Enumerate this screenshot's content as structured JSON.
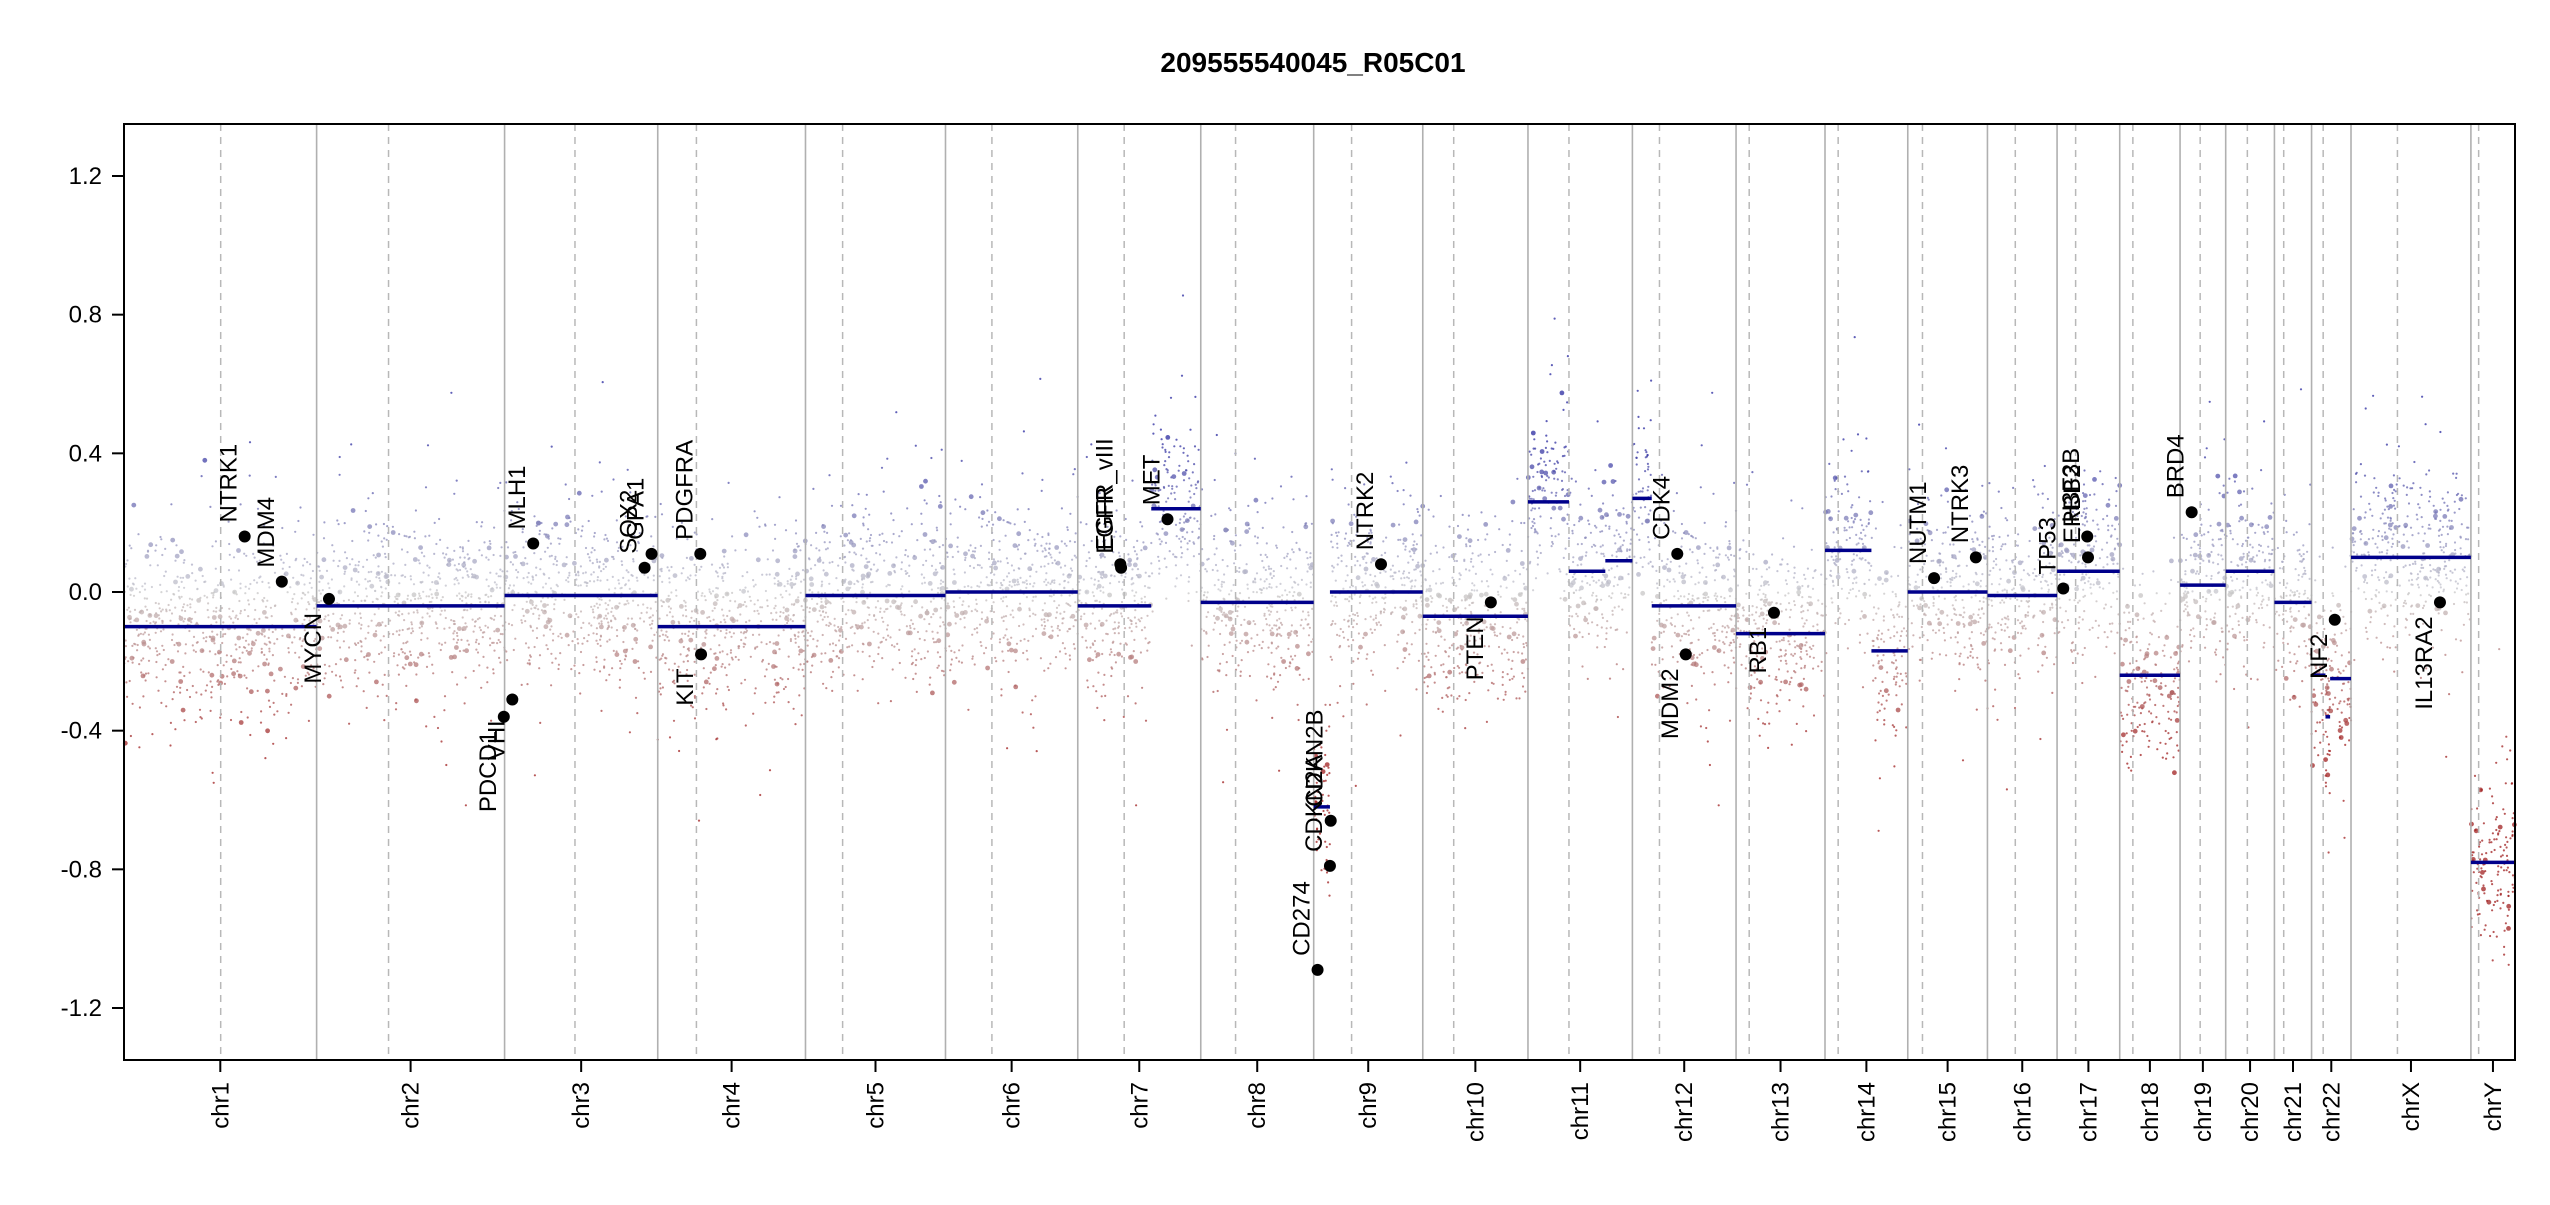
{
  "chart_data": {
    "type": "scatter",
    "title": "209555540045_R05C01",
    "xlabel": "",
    "ylabel": "",
    "ylim": [
      -1.35,
      1.35
    ],
    "yticks": [
      1.2,
      0.8,
      0.4,
      0.0,
      -0.4,
      -0.8,
      -1.2
    ],
    "ytick_labels": [
      "1.2",
      "0.8",
      "0.4",
      "0.0",
      "-0.4",
      "-0.8",
      "-1.2"
    ],
    "grid": false,
    "chromosomes": [
      {
        "name": "chr1",
        "length": 249
      },
      {
        "name": "chr2",
        "length": 243
      },
      {
        "name": "chr3",
        "length": 198
      },
      {
        "name": "chr4",
        "length": 191
      },
      {
        "name": "chr5",
        "length": 181
      },
      {
        "name": "chr6",
        "length": 171
      },
      {
        "name": "chr7",
        "length": 159
      },
      {
        "name": "chr8",
        "length": 146
      },
      {
        "name": "chr9",
        "length": 141
      },
      {
        "name": "chr10",
        "length": 136
      },
      {
        "name": "chr11",
        "length": 135
      },
      {
        "name": "chr12",
        "length": 134
      },
      {
        "name": "chr13",
        "length": 115
      },
      {
        "name": "chr14",
        "length": 107
      },
      {
        "name": "chr15",
        "length": 103
      },
      {
        "name": "chr16",
        "length": 90
      },
      {
        "name": "chr17",
        "length": 81
      },
      {
        "name": "chr18",
        "length": 78
      },
      {
        "name": "chr19",
        "length": 59
      },
      {
        "name": "chr20",
        "length": 63
      },
      {
        "name": "chr21",
        "length": 48
      },
      {
        "name": "chr22",
        "length": 51
      },
      {
        "name": "chrX",
        "length": 155
      },
      {
        "name": "chrY",
        "length": 57
      }
    ],
    "centromeres": [
      {
        "chrom": "chr1",
        "pos": 125
      },
      {
        "chrom": "chr2",
        "pos": 93
      },
      {
        "chrom": "chr3",
        "pos": 91
      },
      {
        "chrom": "chr4",
        "pos": 50
      },
      {
        "chrom": "chr5",
        "pos": 48
      },
      {
        "chrom": "chr6",
        "pos": 60
      },
      {
        "chrom": "chr7",
        "pos": 60
      },
      {
        "chrom": "chr8",
        "pos": 45
      },
      {
        "chrom": "chr9",
        "pos": 49
      },
      {
        "chrom": "chr10",
        "pos": 40
      },
      {
        "chrom": "chr11",
        "pos": 53
      },
      {
        "chrom": "chr12",
        "pos": 35
      },
      {
        "chrom": "chr13",
        "pos": 17
      },
      {
        "chrom": "chr14",
        "pos": 17
      },
      {
        "chrom": "chr15",
        "pos": 19
      },
      {
        "chrom": "chr16",
        "pos": 36
      },
      {
        "chrom": "chr17",
        "pos": 24
      },
      {
        "chrom": "chr18",
        "pos": 17
      },
      {
        "chrom": "chr19",
        "pos": 26
      },
      {
        "chrom": "chr20",
        "pos": 28
      },
      {
        "chrom": "chr21",
        "pos": 12
      },
      {
        "chrom": "chr22",
        "pos": 15
      },
      {
        "chrom": "chrX",
        "pos": 60
      },
      {
        "chrom": "chrY",
        "pos": 10
      }
    ],
    "segments": [
      {
        "chrom": "chr1",
        "start": 0,
        "end": 249,
        "value": -0.1
      },
      {
        "chrom": "chr2",
        "start": 0,
        "end": 243,
        "value": -0.04
      },
      {
        "chrom": "chr3",
        "start": 0,
        "end": 198,
        "value": -0.01
      },
      {
        "chrom": "chr4",
        "start": 0,
        "end": 191,
        "value": -0.1
      },
      {
        "chrom": "chr5",
        "start": 0,
        "end": 181,
        "value": -0.01
      },
      {
        "chrom": "chr6",
        "start": 0,
        "end": 171,
        "value": 0.0
      },
      {
        "chrom": "chr7",
        "start": 0,
        "end": 95,
        "value": -0.04
      },
      {
        "chrom": "chr7",
        "start": 95,
        "end": 159,
        "value": 0.24
      },
      {
        "chrom": "chr8",
        "start": 0,
        "end": 146,
        "value": -0.03
      },
      {
        "chrom": "chr9",
        "start": 0,
        "end": 21,
        "value": -0.62
      },
      {
        "chrom": "chr9",
        "start": 21,
        "end": 141,
        "value": 0.0
      },
      {
        "chrom": "chr10",
        "start": 0,
        "end": 136,
        "value": -0.07
      },
      {
        "chrom": "chr11",
        "start": 0,
        "end": 53,
        "value": 0.26
      },
      {
        "chrom": "chr11",
        "start": 53,
        "end": 100,
        "value": 0.06
      },
      {
        "chrom": "chr11",
        "start": 100,
        "end": 135,
        "value": 0.09
      },
      {
        "chrom": "chr12",
        "start": 0,
        "end": 25,
        "value": 0.27
      },
      {
        "chrom": "chr12",
        "start": 25,
        "end": 134,
        "value": -0.04
      },
      {
        "chrom": "chr13",
        "start": 0,
        "end": 115,
        "value": -0.12
      },
      {
        "chrom": "chr14",
        "start": 0,
        "end": 60,
        "value": 0.12
      },
      {
        "chrom": "chr14",
        "start": 60,
        "end": 107,
        "value": -0.17
      },
      {
        "chrom": "chr15",
        "start": 0,
        "end": 103,
        "value": 0.0
      },
      {
        "chrom": "chr16",
        "start": 0,
        "end": 90,
        "value": -0.01
      },
      {
        "chrom": "chr17",
        "start": 0,
        "end": 81,
        "value": 0.06
      },
      {
        "chrom": "chr18",
        "start": 0,
        "end": 78,
        "value": -0.24
      },
      {
        "chrom": "chr19",
        "start": 0,
        "end": 59,
        "value": 0.02
      },
      {
        "chrom": "chr20",
        "start": 0,
        "end": 63,
        "value": 0.06
      },
      {
        "chrom": "chr21",
        "start": 0,
        "end": 48,
        "value": -0.03
      },
      {
        "chrom": "chr22",
        "start": 0,
        "end": 18,
        "value": -0.24
      },
      {
        "chrom": "chr22",
        "start": 18,
        "end": 24,
        "value": -0.36
      },
      {
        "chrom": "chr22",
        "start": 24,
        "end": 51,
        "value": -0.25
      },
      {
        "chrom": "chrX",
        "start": 0,
        "end": 155,
        "value": 0.1
      },
      {
        "chrom": "chrY",
        "start": 0,
        "end": 57,
        "value": -0.78
      }
    ],
    "genes": [
      {
        "name": "NTRK1",
        "chrom": "chr1",
        "pos": 156,
        "value": 0.16,
        "label_side": "above"
      },
      {
        "name": "MDM4",
        "chrom": "chr1",
        "pos": 204,
        "value": 0.03,
        "label_side": "above"
      },
      {
        "name": "MYCN",
        "chrom": "chr2",
        "pos": 16,
        "value": -0.02,
        "label_side": "below"
      },
      {
        "name": "PDCD1",
        "chrom": "chr2",
        "pos": 242,
        "value": -0.36,
        "label_side": "below"
      },
      {
        "name": "VHL",
        "chrom": "chr3",
        "pos": 10,
        "value": -0.31,
        "label_side": "below"
      },
      {
        "name": "MLH1",
        "chrom": "chr3",
        "pos": 37,
        "value": 0.14,
        "label_side": "above"
      },
      {
        "name": "SOX2",
        "chrom": "chr3",
        "pos": 181,
        "value": 0.07,
        "label_side": "above"
      },
      {
        "name": "GPA1",
        "chrom": "chr3",
        "pos": 190,
        "value": 0.11,
        "label_side": "above"
      },
      {
        "name": "PDGFRA",
        "chrom": "chr4",
        "pos": 55,
        "value": 0.11,
        "label_side": "above"
      },
      {
        "name": "KIT",
        "chrom": "chr4",
        "pos": 56,
        "value": -0.18,
        "label_side": "below"
      },
      {
        "name": "EGFR_vIII",
        "chrom": "chr7",
        "pos": 55,
        "value": 0.08,
        "label_side": "above"
      },
      {
        "name": "EGFR",
        "chrom": "chr7",
        "pos": 56,
        "value": 0.07,
        "label_side": "above"
      },
      {
        "name": "MET",
        "chrom": "chr7",
        "pos": 116,
        "value": 0.21,
        "label_side": "above"
      },
      {
        "name": "CD274",
        "chrom": "chr9",
        "pos": 5,
        "value": -1.09,
        "label_side": "above"
      },
      {
        "name": "CDKN2A",
        "chrom": "chr9",
        "pos": 21,
        "value": -0.79,
        "label_side": "above"
      },
      {
        "name": "CDKN2B",
        "chrom": "chr9",
        "pos": 22,
        "value": -0.66,
        "label_side": "above"
      },
      {
        "name": "NTRK2",
        "chrom": "chr9",
        "pos": 87,
        "value": 0.08,
        "label_side": "above"
      },
      {
        "name": "PTEN",
        "chrom": "chr10",
        "pos": 88,
        "value": -0.03,
        "label_side": "below"
      },
      {
        "name": "CDK4",
        "chrom": "chr12",
        "pos": 58,
        "value": 0.11,
        "label_side": "above"
      },
      {
        "name": "MDM2",
        "chrom": "chr12",
        "pos": 69,
        "value": -0.18,
        "label_side": "below"
      },
      {
        "name": "RB1",
        "chrom": "chr13",
        "pos": 49,
        "value": -0.06,
        "label_side": "below"
      },
      {
        "name": "NUTM1",
        "chrom": "chr15",
        "pos": 34,
        "value": 0.04,
        "label_side": "above"
      },
      {
        "name": "NTRK3",
        "chrom": "chr15",
        "pos": 88,
        "value": 0.1,
        "label_side": "above"
      },
      {
        "name": "TP53",
        "chrom": "chr17",
        "pos": 8,
        "value": 0.01,
        "label_side": "above"
      },
      {
        "name": "H3F3B",
        "chrom": "chr17",
        "pos": 39,
        "value": 0.16,
        "label_side": "above"
      },
      {
        "name": "ERBB2",
        "chrom": "chr17",
        "pos": 40,
        "value": 0.1,
        "label_side": "above"
      },
      {
        "name": "BRD4",
        "chrom": "chr19",
        "pos": 15,
        "value": 0.23,
        "label_side": "above"
      },
      {
        "name": "NF2",
        "chrom": "chr22",
        "pos": 30,
        "value": -0.08,
        "label_side": "below"
      },
      {
        "name": "IL13RA2",
        "chrom": "chrX",
        "pos": 115,
        "value": -0.03,
        "label_side": "below"
      }
    ],
    "colors": {
      "gain": "#2a2aa0",
      "loss": "#a02020",
      "neutral": "#c8c8c8",
      "segment": "#00008b",
      "gene_point": "#000000",
      "chrom_border": "#b0b0b0",
      "centromere": "#b8b8b8"
    }
  }
}
